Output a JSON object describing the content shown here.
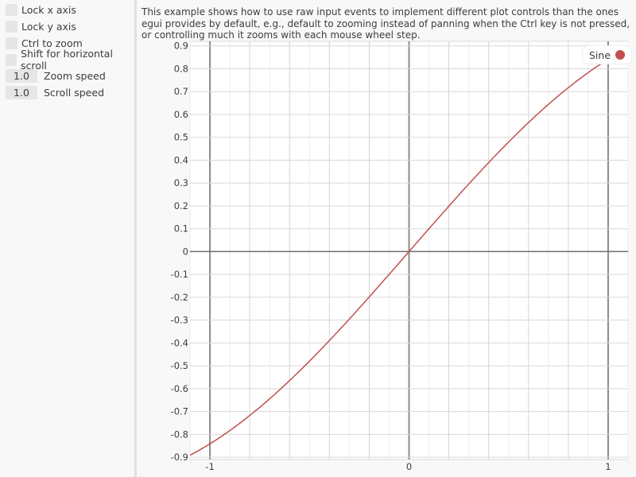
{
  "controls": {
    "checkboxes": [
      {
        "label": "Lock x axis",
        "checked": false
      },
      {
        "label": "Lock y axis",
        "checked": false
      },
      {
        "label": "Ctrl to zoom",
        "checked": false
      },
      {
        "label": "Shift for horizontal scroll",
        "checked": false
      }
    ],
    "zoom_speed": {
      "value": "1.0",
      "label": "Zoom speed"
    },
    "scroll_speed": {
      "value": "1.0",
      "label": "Scroll speed"
    }
  },
  "description": "This example shows how to use raw input events to implement different plot controls than the ones egui provides by default, e.g., default to zooming instead of panning when the Ctrl key is not pressed, or controlling much it zooms with each mouse wheel step.",
  "legend": {
    "label": "Sine",
    "color": "#c0504d"
  },
  "chart_data": {
    "type": "line",
    "function": "sin(x)",
    "series": [
      {
        "name": "Sine",
        "color": "#c0504d"
      }
    ],
    "xlim": [
      -1.1,
      1.1
    ],
    "ylim": [
      -0.91,
      0.92
    ],
    "x_ticks": [
      "-1",
      "0",
      "1"
    ],
    "y_ticks": [
      "0.9",
      "0.8",
      "0.7",
      "0.6",
      "0.5",
      "0.4",
      "0.3",
      "0.2",
      "0.1",
      "0",
      "-0.1",
      "-0.2",
      "-0.3",
      "-0.4",
      "-0.5",
      "-0.6",
      "-0.7",
      "-0.8",
      "-0.9"
    ],
    "grid": true,
    "legend_position": "top-right"
  }
}
